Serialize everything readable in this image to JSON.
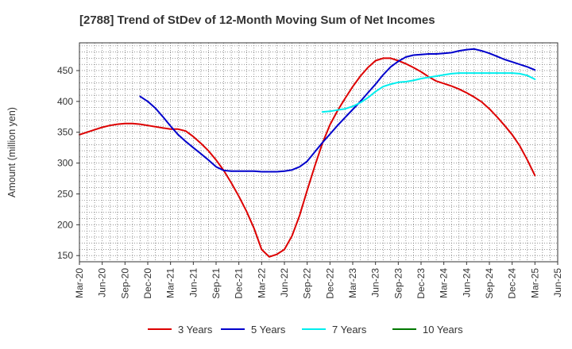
{
  "chart_data": {
    "type": "line",
    "title": "[2788]  Trend of StDev of 12-Month Moving Sum of Net Incomes",
    "xlabel": "",
    "ylabel": "Amount (million yen)",
    "ylim": [
      140,
      495
    ],
    "yticks": [
      150,
      200,
      250,
      300,
      350,
      400,
      450
    ],
    "xticks": [
      "Mar-20",
      "Jun-20",
      "Sep-20",
      "Dec-20",
      "Mar-21",
      "Jun-21",
      "Sep-21",
      "Dec-21",
      "Mar-22",
      "Jun-22",
      "Sep-22",
      "Dec-22",
      "Mar-23",
      "Jun-23",
      "Sep-23",
      "Dec-23",
      "Mar-24",
      "Jun-24",
      "Sep-24",
      "Dec-24",
      "Mar-25",
      "Jun-25"
    ],
    "grid": true,
    "legend_position": "bottom",
    "series": [
      {
        "name": "3 Years",
        "color": "#dd0000",
        "x": [
          "Mar-20",
          "Apr-20",
          "May-20",
          "Jun-20",
          "Jul-20",
          "Aug-20",
          "Sep-20",
          "Oct-20",
          "Nov-20",
          "Dec-20",
          "Jan-21",
          "Feb-21",
          "Mar-21",
          "Apr-21",
          "May-21",
          "Jun-21",
          "Jul-21",
          "Aug-21",
          "Sep-21",
          "Oct-21",
          "Nov-21",
          "Dec-21",
          "Jan-22",
          "Feb-22",
          "Mar-22",
          "Apr-22",
          "May-22",
          "Jun-22",
          "Jul-22",
          "Aug-22",
          "Sep-22",
          "Oct-22",
          "Nov-22",
          "Dec-22",
          "Jan-23",
          "Feb-23",
          "Mar-23",
          "Apr-23",
          "May-23",
          "Jun-23",
          "Jul-23",
          "Aug-23",
          "Sep-23",
          "Oct-23",
          "Nov-23",
          "Dec-23",
          "Jan-24",
          "Feb-24",
          "Mar-24",
          "Apr-24",
          "May-24",
          "Jun-24",
          "Jul-24",
          "Aug-24",
          "Sep-24",
          "Oct-24",
          "Nov-24",
          "Dec-24",
          "Jan-25",
          "Feb-25",
          "Mar-25"
        ],
        "values": [
          346,
          350,
          354,
          358,
          361,
          363,
          364,
          364,
          363,
          361,
          359,
          357,
          355,
          355,
          352,
          343,
          332,
          320,
          305,
          288,
          268,
          246,
          222,
          194,
          160,
          148,
          152,
          160,
          182,
          215,
          256,
          295,
          332,
          362,
          385,
          405,
          424,
          441,
          455,
          466,
          470,
          470,
          466,
          461,
          455,
          448,
          440,
          433,
          429,
          425,
          420,
          414,
          407,
          399,
          388,
          375,
          361,
          346,
          328,
          305,
          280
        ]
      },
      {
        "name": "5 Years",
        "color": "#0000cc",
        "x": [
          "Nov-20",
          "Dec-20",
          "Jan-21",
          "Feb-21",
          "Mar-21",
          "Apr-21",
          "May-21",
          "Jun-21",
          "Jul-21",
          "Aug-21",
          "Sep-21",
          "Oct-21",
          "Nov-21",
          "Dec-21",
          "Jan-22",
          "Feb-22",
          "Mar-22",
          "Apr-22",
          "May-22",
          "Jun-22",
          "Jul-22",
          "Aug-22",
          "Sep-22",
          "Oct-22",
          "Nov-22",
          "Dec-22",
          "Jan-23",
          "Feb-23",
          "Mar-23",
          "Apr-23",
          "May-23",
          "Jun-23",
          "Jul-23",
          "Aug-23",
          "Sep-23",
          "Oct-23",
          "Nov-23",
          "Dec-23",
          "Jan-24",
          "Feb-24",
          "Mar-24",
          "Apr-24",
          "May-24",
          "Jun-24",
          "Jul-24",
          "Aug-24",
          "Sep-24",
          "Oct-24",
          "Nov-24",
          "Dec-24",
          "Jan-25",
          "Feb-25",
          "Mar-25"
        ],
        "values": [
          408,
          400,
          389,
          375,
          360,
          346,
          335,
          325,
          315,
          305,
          294,
          288,
          287,
          287,
          287,
          287,
          286,
          286,
          286,
          287,
          289,
          294,
          303,
          318,
          333,
          347,
          361,
          374,
          387,
          400,
          414,
          428,
          443,
          456,
          465,
          472,
          475,
          476,
          477,
          477,
          478,
          479,
          482,
          484,
          485,
          482,
          478,
          473,
          468,
          464,
          460,
          456,
          451
        ]
      },
      {
        "name": "7 Years",
        "color": "#00eeee",
        "x": [
          "Nov-22",
          "Dec-22",
          "Jan-23",
          "Feb-23",
          "Mar-23",
          "Apr-23",
          "May-23",
          "Jun-23",
          "Jul-23",
          "Aug-23",
          "Sep-23",
          "Oct-23",
          "Nov-23",
          "Dec-23",
          "Jan-24",
          "Feb-24",
          "Mar-24",
          "Apr-24",
          "May-24",
          "Jun-24",
          "Jul-24",
          "Aug-24",
          "Sep-24",
          "Oct-24",
          "Nov-24",
          "Dec-24",
          "Jan-25",
          "Feb-25",
          "Mar-25"
        ],
        "values": [
          383,
          384,
          386,
          388,
          392,
          398,
          406,
          416,
          424,
          428,
          431,
          432,
          434,
          437,
          439,
          441,
          443,
          445,
          446,
          446,
          446,
          446,
          446,
          446,
          446,
          446,
          445,
          442,
          436
        ]
      },
      {
        "name": "10 Years",
        "color": "#007700",
        "x": [],
        "values": []
      }
    ]
  }
}
